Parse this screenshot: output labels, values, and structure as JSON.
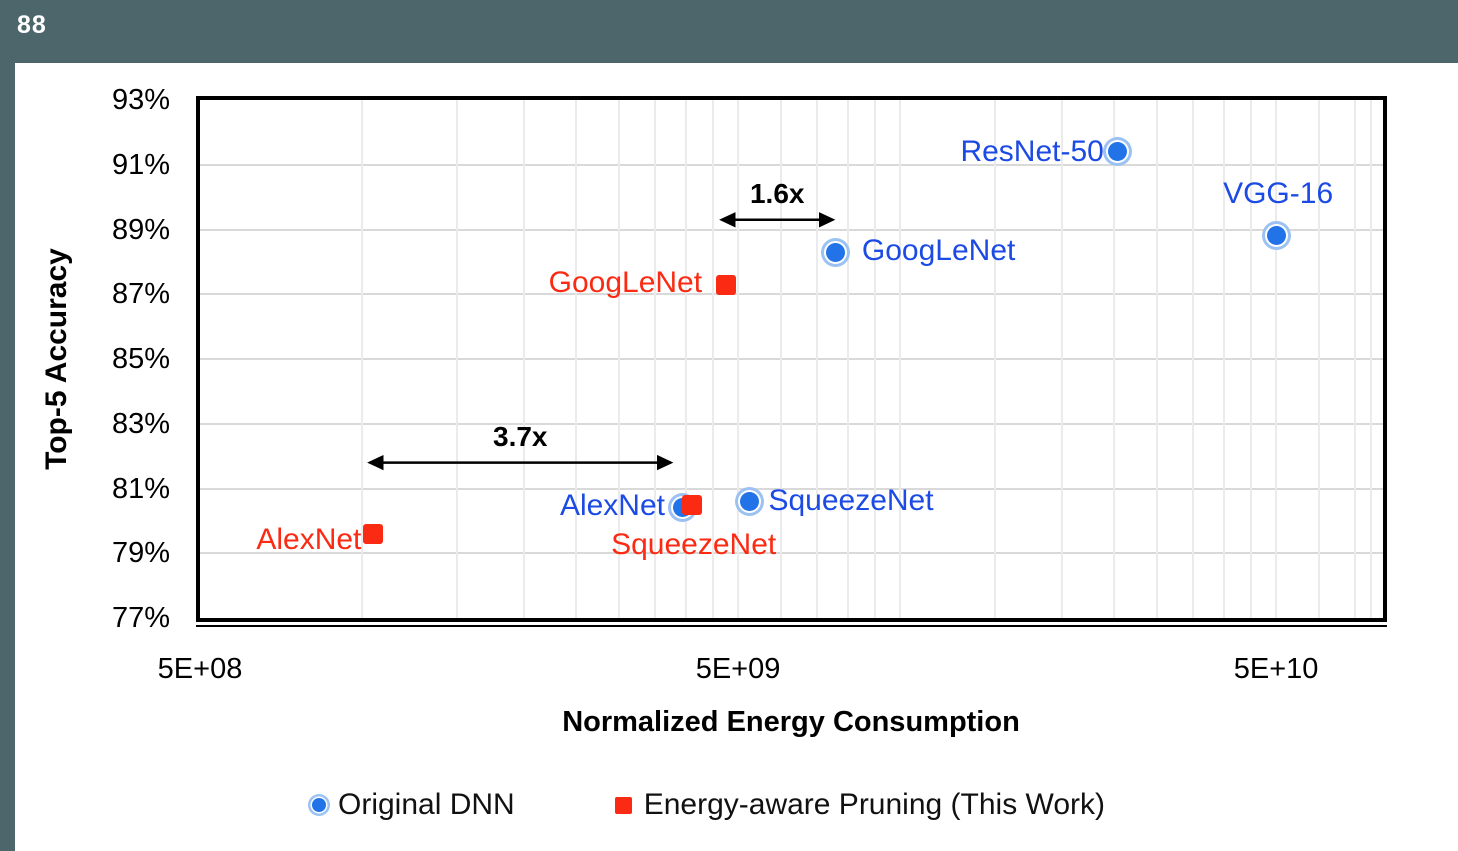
{
  "page": {
    "slide_number": "88"
  },
  "colors": {
    "background": "#4c666c",
    "panel": "#ffffff",
    "original_marker": "#2273e8",
    "original_marker_halo": "#9cc2f3",
    "original_label": "#1c4ae4",
    "pruned": "#fb2a12",
    "gridline_h": "#d9d9d9",
    "gridline_v": "#ebebeb",
    "axis": "#000000",
    "annotation": "#000000"
  },
  "chart_data": {
    "type": "scatter",
    "title": "",
    "xlabel": "Normalized Energy Consumption",
    "ylabel": "Top-5 Accuracy",
    "x_axis": {
      "scale": "log",
      "min": 500000000.0,
      "max": 79000000000.0,
      "ticks": [
        {
          "label": "5E+08",
          "value": 500000000.0
        },
        {
          "label": "5E+09",
          "value": 5000000000.0
        },
        {
          "label": "5E+10",
          "value": 50000000000.0
        }
      ],
      "minor_gridline_values": [
        1000000000.0,
        1500000000.0,
        2000000000.0,
        2500000000.0,
        3000000000.0,
        3500000000.0,
        4000000000.0,
        4500000000.0,
        5000000000.0,
        6000000000.0,
        7000000000.0,
        8000000000.0,
        9000000000.0,
        10000000000.0,
        15000000000.0,
        20000000000.0,
        25000000000.0,
        30000000000.0,
        35000000000.0,
        40000000000.0,
        45000000000.0,
        50000000000.0,
        60000000000.0,
        70000000000.0,
        75000000000.0
      ]
    },
    "y_axis": {
      "min": 77,
      "max": 93,
      "step": 2,
      "unit": "%",
      "ticks": [
        {
          "label": "93%",
          "value": 93
        },
        {
          "label": "91%",
          "value": 91
        },
        {
          "label": "89%",
          "value": 89
        },
        {
          "label": "87%",
          "value": 87
        },
        {
          "label": "85%",
          "value": 85
        },
        {
          "label": "83%",
          "value": 83
        },
        {
          "label": "81%",
          "value": 81
        },
        {
          "label": "79%",
          "value": 79
        },
        {
          "label": "77%",
          "value": 77
        }
      ]
    },
    "series": [
      {
        "name": "Original DNN",
        "marker": "circle",
        "points": [
          {
            "name": "AlexNet",
            "x": 3950000000.0,
            "y": 80.4,
            "label": {
              "anchor": "right",
              "dx": -18,
              "dy": -2
            }
          },
          {
            "name": "SqueezeNet",
            "x": 5250000000.0,
            "y": 80.6,
            "label": {
              "anchor": "left",
              "dx": 19,
              "dy": 0
            }
          },
          {
            "name": "GoogLeNet",
            "x": 7600000000.0,
            "y": 88.3,
            "label": {
              "anchor": "left",
              "dx": 26,
              "dy": -1
            }
          },
          {
            "name": "ResNet-50",
            "x": 25400000000.0,
            "y": 91.4,
            "label": {
              "anchor": "right",
              "dx": -14,
              "dy": 0
            }
          },
          {
            "name": "VGG-16",
            "x": 50000000000.0,
            "y": 88.8,
            "label": {
              "anchor": "center",
              "dx": 2,
              "dy": -42
            }
          }
        ]
      },
      {
        "name": "Energy-aware Pruning (This Work)",
        "marker": "square",
        "points": [
          {
            "name": "AlexNet",
            "x": 1050000000.0,
            "y": 79.6,
            "label": {
              "anchor": "right",
              "dx": -12,
              "dy": 6
            }
          },
          {
            "name": "SqueezeNet",
            "x": 4100000000.0,
            "y": 80.5,
            "label": {
              "anchor": "center",
              "dx": 2,
              "dy": 40
            }
          },
          {
            "name": "GoogLeNet",
            "x": 4750000000.0,
            "y": 87.3,
            "label": {
              "anchor": "right",
              "dx": -24,
              "dy": -2
            }
          }
        ]
      }
    ],
    "annotations": [
      {
        "text": "3.7x",
        "x1": 1020000000.0,
        "x2": 3800000000.0,
        "y": 81.8
      },
      {
        "text": "1.6x",
        "x1": 4600000000.0,
        "x2": 7600000000.0,
        "y": 89.3
      }
    ],
    "legend": {
      "position": "bottom",
      "items": [
        {
          "label": "Original DNN",
          "marker": "circle"
        },
        {
          "label": "Energy-aware Pruning (This Work)",
          "marker": "square"
        }
      ]
    }
  }
}
